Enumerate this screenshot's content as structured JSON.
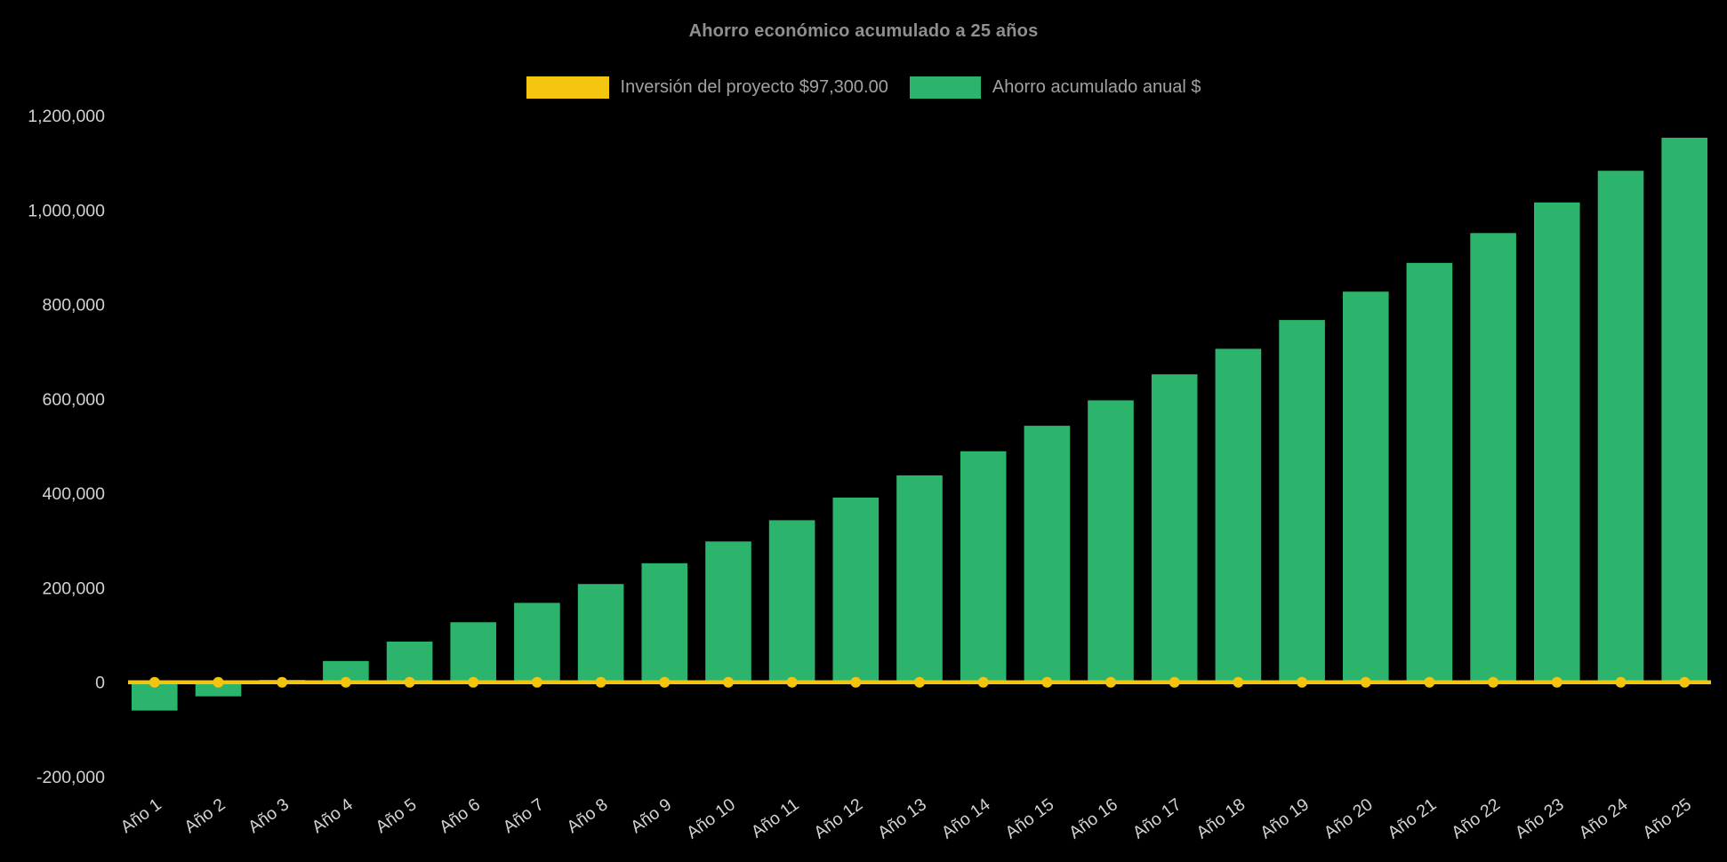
{
  "title": "Ahorro económico acumulado a 25 años",
  "legend": {
    "items": [
      {
        "label": "Inversión del proyecto $97,300.00",
        "color": "#F3C50F"
      },
      {
        "label": "Ahorro acumulado anual $",
        "color": "#2CB46C"
      }
    ]
  },
  "colors": {
    "background": "#000000",
    "bar": "#2CB46C",
    "line": "#F3C50F",
    "title_text": "#8F8F8F",
    "legend_text": "#A2A2A2",
    "axis_text": "#D2D2D2"
  },
  "chart_data": {
    "type": "bar",
    "title": "Ahorro económico acumulado a 25 años",
    "xlabel": "",
    "ylabel": "",
    "grid": false,
    "legend_position": "top",
    "background": "#000000",
    "ylim": [
      -200000,
      1200000
    ],
    "ytick_step": 200000,
    "ytick_labels": [
      "-200,000",
      "0",
      "200,000",
      "400,000",
      "600,000",
      "800,000",
      "1,000,000",
      "1,200,000"
    ],
    "x_label_rotation": -36,
    "categories": [
      "Año 1",
      "Año 2",
      "Año 3",
      "Año 4",
      "Año 5",
      "Año 6",
      "Año 7",
      "Año 8",
      "Año 9",
      "Año 10",
      "Año 11",
      "Año 12",
      "Año 13",
      "Año 14",
      "Año 15",
      "Año 16",
      "Año 17",
      "Año 18",
      "Año 19",
      "Año 20",
      "Año 21",
      "Año 22",
      "Año 23",
      "Año 24",
      "Año 25"
    ],
    "series": [
      {
        "name": "Ahorro acumulado anual $",
        "type": "bar",
        "color": "#2CB46C",
        "values": [
          -60000,
          -30000,
          5000,
          45000,
          86000,
          127000,
          168000,
          208000,
          252000,
          298000,
          343000,
          391000,
          438000,
          489000,
          543000,
          597000,
          652000,
          706000,
          767000,
          827000,
          888000,
          951000,
          1016000,
          1083000,
          1153000
        ]
      },
      {
        "name": "Inversión del proyecto $97,300.00",
        "type": "line",
        "color": "#F3C50F",
        "marker": "circle",
        "values": [
          0,
          0,
          0,
          0,
          0,
          0,
          0,
          0,
          0,
          0,
          0,
          0,
          0,
          0,
          0,
          0,
          0,
          0,
          0,
          0,
          0,
          0,
          0,
          0,
          0
        ]
      }
    ]
  }
}
